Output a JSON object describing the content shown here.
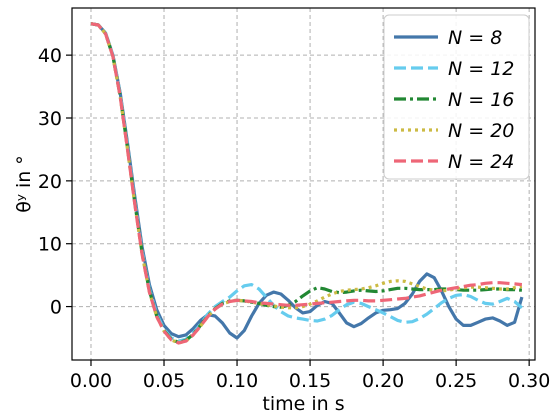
{
  "chart_data": {
    "type": "line",
    "title": "",
    "xlabel": "time in s",
    "ylabel": "θʸ in °",
    "xlim": [
      -0.013,
      0.304
    ],
    "ylim": [
      -8.5,
      47.5
    ],
    "xticks": [
      0.0,
      0.05,
      0.1,
      0.15,
      0.2,
      0.25,
      0.3
    ],
    "xtick_labels": [
      "0.00",
      "0.05",
      "0.10",
      "0.15",
      "0.20",
      "0.25",
      "0.30"
    ],
    "yticks": [
      0,
      10,
      20,
      30,
      40
    ],
    "ytick_labels": [
      "0",
      "10",
      "20",
      "30",
      "40"
    ],
    "grid": true,
    "legend_position": "top-right",
    "series": [
      {
        "name": "N = 8",
        "color": "#4477aa",
        "dash": "solid",
        "x": [
          0.0,
          0.005,
          0.01,
          0.015,
          0.02,
          0.025,
          0.03,
          0.035,
          0.04,
          0.045,
          0.05,
          0.055,
          0.06,
          0.065,
          0.07,
          0.075,
          0.08,
          0.085,
          0.09,
          0.095,
          0.1,
          0.105,
          0.11,
          0.115,
          0.12,
          0.125,
          0.13,
          0.135,
          0.14,
          0.145,
          0.15,
          0.155,
          0.16,
          0.165,
          0.17,
          0.175,
          0.18,
          0.185,
          0.19,
          0.195,
          0.2,
          0.205,
          0.21,
          0.215,
          0.22,
          0.225,
          0.23,
          0.235,
          0.24,
          0.245,
          0.25,
          0.255,
          0.26,
          0.265,
          0.27,
          0.275,
          0.28,
          0.285,
          0.29,
          0.295
        ],
        "y": [
          45.0,
          44.8,
          43.5,
          40.0,
          34.0,
          26.0,
          17.5,
          9.5,
          3.5,
          -0.5,
          -3.0,
          -4.3,
          -4.8,
          -4.5,
          -3.5,
          -2.2,
          -1.3,
          -1.5,
          -2.6,
          -4.2,
          -5.0,
          -3.8,
          -1.5,
          0.5,
          1.8,
          2.3,
          2.0,
          1.0,
          -0.2,
          -1.0,
          -0.8,
          0.2,
          0.8,
          0.5,
          -1.0,
          -2.6,
          -3.2,
          -2.7,
          -1.8,
          -1.0,
          -0.6,
          -0.5,
          -0.3,
          0.5,
          2.0,
          4.0,
          5.2,
          4.6,
          2.5,
          0.0,
          -2.0,
          -3.0,
          -3.0,
          -2.5,
          -2.0,
          -1.8,
          -2.3,
          -3.0,
          -2.5,
          1.5
        ]
      },
      {
        "name": "N = 12",
        "color": "#66ccee",
        "dash": "dashed",
        "x": [
          0.0,
          0.005,
          0.01,
          0.015,
          0.02,
          0.025,
          0.03,
          0.035,
          0.04,
          0.045,
          0.05,
          0.055,
          0.06,
          0.065,
          0.07,
          0.075,
          0.08,
          0.085,
          0.09,
          0.095,
          0.1,
          0.105,
          0.11,
          0.115,
          0.12,
          0.125,
          0.13,
          0.135,
          0.14,
          0.145,
          0.15,
          0.155,
          0.16,
          0.165,
          0.17,
          0.175,
          0.18,
          0.185,
          0.19,
          0.195,
          0.2,
          0.205,
          0.21,
          0.215,
          0.22,
          0.225,
          0.23,
          0.235,
          0.24,
          0.245,
          0.25,
          0.255,
          0.26,
          0.265,
          0.27,
          0.275,
          0.28,
          0.285,
          0.29,
          0.295
        ],
        "y": [
          45.0,
          44.8,
          43.5,
          40.0,
          33.8,
          25.5,
          16.8,
          8.8,
          2.8,
          -1.2,
          -3.6,
          -5.0,
          -5.5,
          -5.2,
          -4.2,
          -2.8,
          -1.2,
          0.0,
          0.8,
          1.5,
          2.5,
          3.3,
          3.5,
          2.8,
          1.5,
          0.2,
          -0.8,
          -1.5,
          -1.8,
          -2.0,
          -2.2,
          -2.3,
          -2.0,
          -1.4,
          -0.5,
          0.3,
          0.7,
          0.5,
          0.0,
          -0.5,
          -1.0,
          -1.6,
          -2.2,
          -2.5,
          -2.4,
          -1.9,
          -1.2,
          -0.3,
          0.6,
          1.3,
          1.8,
          1.9,
          1.6,
          1.0,
          0.5,
          0.4,
          0.8,
          1.3,
          0.8,
          -0.2
        ]
      },
      {
        "name": "N = 16",
        "color": "#228833",
        "dash": "dashdot",
        "x": [
          0.0,
          0.005,
          0.01,
          0.015,
          0.02,
          0.025,
          0.03,
          0.035,
          0.04,
          0.045,
          0.05,
          0.055,
          0.06,
          0.065,
          0.07,
          0.075,
          0.08,
          0.085,
          0.09,
          0.095,
          0.1,
          0.105,
          0.11,
          0.115,
          0.12,
          0.125,
          0.13,
          0.135,
          0.14,
          0.145,
          0.15,
          0.155,
          0.16,
          0.165,
          0.17,
          0.175,
          0.18,
          0.185,
          0.19,
          0.195,
          0.2,
          0.205,
          0.21,
          0.215,
          0.22,
          0.225,
          0.23,
          0.235,
          0.24,
          0.245,
          0.25,
          0.255,
          0.26,
          0.265,
          0.27,
          0.275,
          0.28,
          0.285,
          0.29,
          0.295
        ],
        "y": [
          45.0,
          44.8,
          43.4,
          39.8,
          33.5,
          25.2,
          16.5,
          8.5,
          2.5,
          -1.5,
          -3.8,
          -5.2,
          -5.7,
          -5.4,
          -4.4,
          -3.0,
          -1.5,
          -0.3,
          0.5,
          0.9,
          1.0,
          0.9,
          0.7,
          0.5,
          0.2,
          0.0,
          -0.1,
          0.2,
          0.8,
          1.7,
          2.5,
          3.0,
          2.8,
          2.4,
          2.2,
          2.3,
          2.5,
          2.6,
          2.5,
          2.4,
          2.5,
          2.7,
          2.9,
          2.9,
          2.8,
          2.7,
          2.7,
          2.7,
          2.8,
          2.8,
          2.7,
          2.6,
          2.6,
          2.6,
          2.7,
          2.8,
          2.8,
          2.7,
          2.7,
          2.6
        ]
      },
      {
        "name": "N = 20",
        "color": "#ccbb44",
        "dash": "dotted",
        "x": [
          0.0,
          0.005,
          0.01,
          0.015,
          0.02,
          0.025,
          0.03,
          0.035,
          0.04,
          0.045,
          0.05,
          0.055,
          0.06,
          0.065,
          0.07,
          0.075,
          0.08,
          0.085,
          0.09,
          0.095,
          0.1,
          0.105,
          0.11,
          0.115,
          0.12,
          0.125,
          0.13,
          0.135,
          0.14,
          0.145,
          0.15,
          0.155,
          0.16,
          0.165,
          0.17,
          0.175,
          0.18,
          0.185,
          0.19,
          0.195,
          0.2,
          0.205,
          0.21,
          0.215,
          0.22,
          0.225,
          0.23,
          0.235,
          0.24,
          0.245,
          0.25,
          0.255,
          0.26,
          0.265,
          0.27,
          0.275,
          0.28,
          0.285,
          0.29,
          0.295
        ],
        "y": [
          45.0,
          44.8,
          43.4,
          39.8,
          33.4,
          25.0,
          16.3,
          8.3,
          2.3,
          -1.6,
          -3.9,
          -5.3,
          -5.8,
          -5.5,
          -4.5,
          -3.1,
          -1.6,
          -0.4,
          0.4,
          0.8,
          1.0,
          0.9,
          0.7,
          0.5,
          0.3,
          0.1,
          -0.1,
          -0.2,
          -0.2,
          0.0,
          0.4,
          0.9,
          1.5,
          2.0,
          2.4,
          2.6,
          2.7,
          2.8,
          3.0,
          3.3,
          3.7,
          4.0,
          4.1,
          4.0,
          3.6,
          3.2,
          2.8,
          2.6,
          2.5,
          2.6,
          2.8,
          3.0,
          3.1,
          3.1,
          3.0,
          2.9,
          2.8,
          2.8,
          3.0,
          3.2
        ]
      },
      {
        "name": "N = 24",
        "color": "#ee6677",
        "dash": "dashed",
        "x": [
          0.0,
          0.005,
          0.01,
          0.015,
          0.02,
          0.025,
          0.03,
          0.035,
          0.04,
          0.045,
          0.05,
          0.055,
          0.06,
          0.065,
          0.07,
          0.075,
          0.08,
          0.085,
          0.09,
          0.095,
          0.1,
          0.105,
          0.11,
          0.115,
          0.12,
          0.125,
          0.13,
          0.135,
          0.14,
          0.145,
          0.15,
          0.155,
          0.16,
          0.165,
          0.17,
          0.175,
          0.18,
          0.185,
          0.19,
          0.195,
          0.2,
          0.205,
          0.21,
          0.215,
          0.22,
          0.225,
          0.23,
          0.235,
          0.24,
          0.245,
          0.25,
          0.255,
          0.26,
          0.265,
          0.27,
          0.275,
          0.28,
          0.285,
          0.29,
          0.295
        ],
        "y": [
          45.0,
          44.8,
          43.4,
          39.8,
          33.4,
          25.0,
          16.3,
          8.3,
          2.3,
          -1.6,
          -3.9,
          -5.3,
          -5.8,
          -5.5,
          -4.5,
          -3.1,
          -1.6,
          -0.4,
          0.4,
          0.8,
          1.0,
          0.9,
          0.8,
          0.6,
          0.5,
          0.4,
          0.3,
          0.2,
          0.2,
          0.3,
          0.4,
          0.5,
          0.6,
          0.7,
          0.8,
          0.9,
          1.0,
          1.0,
          0.9,
          0.9,
          1.0,
          1.1,
          1.2,
          1.3,
          1.5,
          1.7,
          2.0,
          2.3,
          2.6,
          2.8,
          3.0,
          3.2,
          3.4,
          3.5,
          3.7,
          3.8,
          3.8,
          3.7,
          3.6,
          3.5
        ]
      }
    ]
  }
}
